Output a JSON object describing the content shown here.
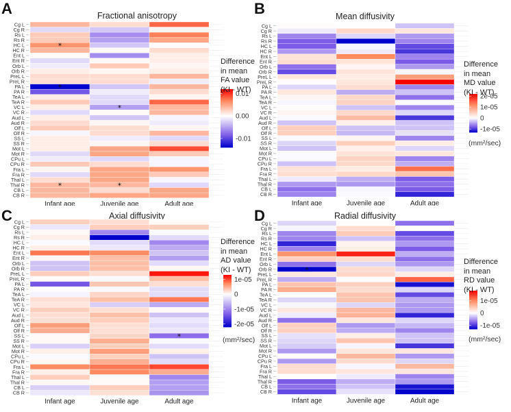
{
  "chart_data": [
    {
      "type": "heatmap",
      "panel": "A",
      "title": "Fractional anisotropy",
      "xlabel": "",
      "ylabel": "",
      "columns": [
        "Infant age",
        "Juvenile age",
        "Adult age"
      ],
      "rows": [
        "Cg L",
        "Cg R",
        "Rs L",
        "Rs R",
        "HC L",
        "HC R",
        "Ent L",
        "Ent R",
        "Orb L",
        "Orb R",
        "PreL L",
        "PreL R",
        "PA L",
        "PA R",
        "TeA L",
        "TeA R",
        "VC L",
        "VC R",
        "Aud L",
        "Aud R",
        "Olf L",
        "Olf R",
        "SS L",
        "SS R",
        "Mot L",
        "Mot R",
        "CPu L",
        "CPu R",
        "Fra L",
        "Fra R",
        "Thal L",
        "Thal R",
        "CB L",
        "CB R"
      ],
      "values": [
        [
          0.004,
          0.002,
          0.008
        ],
        [
          -0.002,
          -0.003,
          0.0005
        ],
        [
          0.003,
          -0.006,
          0.007
        ],
        [
          0.003,
          -0.005,
          0.005
        ],
        [
          0.006,
          -0.003,
          0.0002
        ],
        [
          0.004,
          0.0003,
          0.002
        ],
        [
          0.0003,
          -0.006,
          0.001
        ],
        [
          -0.002,
          0.0003,
          0.001
        ],
        [
          -0.001,
          0.003,
          0.0005
        ],
        [
          0.001,
          0.0005,
          0.001
        ],
        [
          0.002,
          0.002,
          0.004
        ],
        [
          0.002,
          0.002,
          -0.001
        ],
        [
          -0.014,
          -0.003,
          0.004
        ],
        [
          -0.009,
          -0.001,
          0.002
        ],
        [
          0.001,
          -0.002,
          0.0005
        ],
        [
          0.003,
          -0.002,
          0.008
        ],
        [
          0.001,
          -0.005,
          0.004
        ],
        [
          -0.002,
          0.0003,
          0.004
        ],
        [
          0.001,
          -0.003,
          -0.0005
        ],
        [
          0.002,
          0.0005,
          -0.001
        ],
        [
          0.003,
          0.002,
          0.0005
        ],
        [
          -0.0005,
          0.002,
          0.004
        ],
        [
          0.001,
          -0.001,
          -0.002
        ],
        [
          0.001,
          0.0005,
          0.002
        ],
        [
          0.001,
          0.005,
          0.009
        ],
        [
          -0.002,
          0.005,
          0.003
        ],
        [
          -0.001,
          -0.002,
          -0.0005
        ],
        [
          0.003,
          0.002,
          -0.0005
        ],
        [
          0.0005,
          0.005,
          0.006
        ],
        [
          -0.002,
          0.005,
          0.003
        ],
        [
          0.002,
          0.005,
          -0.0005
        ],
        [
          0.004,
          0.004,
          -0.002
        ],
        [
          0.004,
          0.002,
          0.005
        ],
        [
          0.004,
          0.005,
          0.005
        ]
      ],
      "significant": [
        [
          4,
          0
        ],
        [
          12,
          0
        ],
        [
          16,
          1
        ],
        [
          31,
          0
        ],
        [
          31,
          1
        ]
      ],
      "legend": {
        "title_lines": [
          "Difference",
          "in mean",
          "FA value",
          "(KI - WT)"
        ],
        "ticks": [
          0.01,
          0.0,
          -0.01
        ],
        "tick_labels": [
          "0.01",
          "0.00",
          "-0.01"
        ],
        "range": [
          -0.014,
          0.012
        ],
        "unit": ""
      }
    },
    {
      "type": "heatmap",
      "panel": "B",
      "title": "Mean diffusivity",
      "xlabel": "",
      "ylabel": "",
      "columns": [
        "Infant age",
        "Juvenile age",
        "Adult age"
      ],
      "rows": [
        "Cg L",
        "Cg R",
        "Rs L",
        "Rs R",
        "HC L",
        "HC R",
        "Ent L",
        "Ent R",
        "Orb L",
        "Orb R",
        "PreL L",
        "PreL R",
        "PA L",
        "PA R",
        "TeA L",
        "TeA R",
        "VC L",
        "VC R",
        "Aud L",
        "Aud R",
        "Olf L",
        "Olf R",
        "SS L",
        "SS R",
        "Mot L",
        "Mot R",
        "CPu L",
        "CPu R",
        "Fra L",
        "Fra R",
        "Thal L",
        "Thal R",
        "CB L",
        "CB R"
      ],
      "values": [
        [
          3e-07,
          1e-07,
          -3e-06
        ],
        [
          -1e-06,
          4e-06,
          2.5e-06
        ],
        [
          -6e-06,
          -2e-06,
          -5e-06
        ],
        [
          -8e-06,
          -1.3e-05,
          -6e-06
        ],
        [
          -8e-06,
          -5e-07,
          -9e-06
        ],
        [
          -5e-06,
          -1e-06,
          -1e-05
        ],
        [
          3e-06,
          1.2e-05,
          -6e-06
        ],
        [
          3.5e-06,
          3e-06,
          -8e-06
        ],
        [
          -7e-06,
          1e-06,
          -5e-06
        ],
        [
          -9e-06,
          3e-06,
          -5e-07
        ],
        [
          2.5e-06,
          2e-06,
          1e-05
        ],
        [
          3e-07,
          2.5e-06,
          2.2e-05
        ],
        [
          -2e-06,
          3.5e-06,
          -6e-06
        ],
        [
          2.5e-06,
          -4e-06,
          -3e-06
        ],
        [
          1e-06,
          4e-06,
          -7e-06
        ],
        [
          -5e-07,
          4.5e-06,
          -3e-07
        ],
        [
          3e-07,
          -3e-06,
          -6e-06
        ],
        [
          1e-06,
          4e-06,
          -2e-06
        ],
        [
          -3e-07,
          7e-06,
          -1e-05
        ],
        [
          -3e-06,
          1.5e-06,
          -3e-06
        ],
        [
          5e-06,
          -3e-06,
          -3e-06
        ],
        [
          5e-06,
          -3.5e-06,
          -1.5e-06
        ],
        [
          -3e-07,
          1e-06,
          -6e-06
        ],
        [
          -2e-06,
          5e-06,
          2e-06
        ],
        [
          -3e-06,
          1.5e-06,
          -2e-06
        ],
        [
          -3e-07,
          3e-06,
          2.5e-06
        ],
        [
          -3e-07,
          4.5e-06,
          -6e-06
        ],
        [
          -3e-06,
          4e-06,
          -4e-06
        ],
        [
          3e-06,
          2e-06,
          1.4e-05
        ],
        [
          3.5e-06,
          4e-06,
          6e-06
        ],
        [
          -1e-06,
          -4e-06,
          -8e-06
        ],
        [
          -5e-06,
          -5e-06,
          -7e-06
        ],
        [
          -7e-06,
          -5e-07,
          -8e-06
        ],
        [
          -6e-06,
          -3e-07,
          -1.1e-05
        ]
      ],
      "significant": [],
      "legend": {
        "title_lines": [
          "Difference",
          "in mean",
          "MD value",
          "(KI - WT)"
        ],
        "ticks": [
          2e-05,
          1e-05,
          0,
          -1e-05
        ],
        "tick_labels": [
          "2e-05",
          "1e-05",
          "0",
          "-1e-05"
        ],
        "range": [
          -1.3e-05,
          2.2e-05
        ],
        "unit": "(mm²/sec)"
      }
    },
    {
      "type": "heatmap",
      "panel": "C",
      "title": "Axial diffusivity",
      "xlabel": "",
      "ylabel": "",
      "columns": [
        "Infant age",
        "Juvenile age",
        "Adult age"
      ],
      "rows": [
        "Cg L",
        "Cg R",
        "Rs L",
        "Rs R",
        "HC L",
        "HC R",
        "Ent L",
        "Ent R",
        "Orb L",
        "Orb R",
        "PreL L",
        "PreL R",
        "PA L",
        "PA R",
        "TeA L",
        "TeA R",
        "VC L",
        "VC R",
        "Aud L",
        "Aud R",
        "Olf L",
        "Olf R",
        "SS L",
        "SS R",
        "Mot L",
        "Mot R",
        "CPu L",
        "CPu R",
        "Fra L",
        "Fra R",
        "Thal L",
        "Thal R",
        "CB L",
        "CB R"
      ],
      "values": [
        [
          3e-06,
          2e-06,
          3e-07
        ],
        [
          -2e-06,
          3e-06,
          3e-06
        ],
        [
          3e-07,
          -1e-05,
          -5e-07
        ],
        [
          1e-06,
          -2.2e-05,
          -3e-06
        ],
        [
          -5e-07,
          -3e-06,
          -1e-05
        ],
        [
          1e-06,
          -2e-06,
          -7e-06
        ],
        [
          8e-06,
          7e-06,
          -5e-06
        ],
        [
          5e-07,
          4e-06,
          -8e-06
        ],
        [
          -5e-06,
          4e-06,
          -3e-06
        ],
        [
          -5e-06,
          4e-06,
          5e-07
        ],
        [
          3e-06,
          2e-06,
          1.2e-05
        ],
        [
          3e-07,
          -5e-07,
          4e-06
        ],
        [
          -1.4e-05,
          3.5e-06,
          2e-06
        ],
        [
          -3e-07,
          -5e-07,
          -3e-06
        ],
        [
          -1e-06,
          2.5e-06,
          -3e-06
        ],
        [
          2e-06,
          4e-06,
          8e-06
        ],
        [
          1.5e-06,
          -4e-06,
          -7e-06
        ],
        [
          3e-06,
          2e-06,
          3e-07
        ],
        [
          2e-06,
          4e-06,
          -5e-06
        ],
        [
          2e-06,
          3e-06,
          -2e-06
        ],
        [
          6e-06,
          2e-06,
          -3e-06
        ],
        [
          5e-06,
          2e-06,
          -2e-06
        ],
        [
          3e-07,
          2.5e-06,
          -1.2e-05
        ],
        [
          3e-07,
          5e-06,
          -5e-07
        ],
        [
          -4e-06,
          3e-06,
          -3e-06
        ],
        [
          1e-06,
          6e-06,
          1e-06
        ],
        [
          -5e-07,
          3e-06,
          -5e-06
        ],
        [
          5e-07,
          5e-06,
          -3e-06
        ],
        [
          7e-06,
          8e-06,
          1e-05
        ],
        [
          1e-06,
          7e-06,
          5e-06
        ],
        [
          3e-06,
          3e-07,
          -1e-05
        ],
        [
          5e-07,
          3e-07,
          -8e-06
        ],
        [
          -4e-06,
          3e-06,
          -8e-06
        ],
        [
          -2e-06,
          2e-06,
          -9e-06
        ]
      ],
      "significant": [
        [
          22,
          2
        ]
      ],
      "legend": {
        "title_lines": [
          "Difference",
          "in mean",
          "AD value",
          "(KI - WT)"
        ],
        "ticks": [
          1e-05,
          0,
          -1e-05,
          -2e-05
        ],
        "tick_labels": [
          "1e-05",
          "0",
          "-1e-05",
          "-2e-05"
        ],
        "range": [
          -2.2e-05,
          1.3e-05
        ],
        "unit": "(mm²/sec)"
      }
    },
    {
      "type": "heatmap",
      "panel": "D",
      "title": "Radial diffusivity",
      "xlabel": "",
      "ylabel": "",
      "columns": [
        "Infant age",
        "Juvenile age",
        "Adult age"
      ],
      "rows": [
        "Cg L",
        "Cg R",
        "Rs L",
        "Rs R",
        "HC L",
        "HC R",
        "Ent L",
        "Ent R",
        "Orb L",
        "Orb R",
        "PreL L",
        "PreL R",
        "PA L",
        "PA R",
        "TeA L",
        "TeA R",
        "VC L",
        "VC R",
        "Aud L",
        "Aud R",
        "Olf L",
        "Olf R",
        "SS L",
        "SS R",
        "Mot L",
        "Mot R",
        "CPu L",
        "CPu R",
        "Fra L",
        "Fra R",
        "Thal L",
        "Thal R",
        "CB L",
        "CB R"
      ],
      "values": [
        [
          -2e-06,
          2e-07,
          -7e-06
        ],
        [
          -5e-07,
          3e-06,
          3e-07
        ],
        [
          -6e-06,
          4.5e-06,
          -9e-06
        ],
        [
          -6e-06,
          -3e-06,
          -7e-06
        ],
        [
          -1.1e-05,
          1e-06,
          -5e-06
        ],
        [
          -6e-06,
          1.5e-06,
          -8e-06
        ],
        [
          9e-06,
          1.6e-05,
          -4e-06
        ],
        [
          4e-06,
          3e-06,
          -7e-06
        ],
        [
          -7e-06,
          -2e-06,
          -5e-06
        ],
        [
          -1.3e-05,
          3e-06,
          -2e-06
        ],
        [
          2e-06,
          3.5e-06,
          1.5e-06
        ],
        [
          -4e-06,
          -2e-07,
          1.2e-05
        ],
        [
          5e-06,
          4e-06,
          -1.2e-05
        ],
        [
          7e-06,
          3e-06,
          -2e-06
        ],
        [
          3e-07,
          5e-06,
          -9e-06
        ],
        [
          -2e-06,
          5e-06,
          -4e-06
        ],
        [
          -5e-07,
          -2e-06,
          -5e-06
        ],
        [
          2e-06,
          6e-06,
          -5e-06
        ],
        [
          -1e-06,
          6.5e-06,
          -1.1e-05
        ],
        [
          -7e-06,
          2e-06,
          -2e-06
        ],
        [
          4e-06,
          -5e-06,
          -3.5e-06
        ],
        [
          4e-06,
          -4e-06,
          -6e-06
        ],
        [
          -1.5e-06,
          1.5e-06,
          -3e-06
        ],
        [
          -2e-06,
          5e-06,
          -3e-06
        ],
        [
          -2.5e-06,
          -5e-07,
          -1e-05
        ],
        [
          -5e-06,
          2e-06,
          2e-06
        ],
        [
          5e-07,
          6e-06,
          -5e-06
        ],
        [
          -5e-06,
          3e-06,
          -2e-06
        ],
        [
          3e-06,
          -5e-07,
          6e-06
        ],
        [
          3e-06,
          2e-06,
          2e-06
        ],
        [
          2e-07,
          -1e-06,
          -6e-06
        ],
        [
          -8e-06,
          -4e-06,
          -5e-06
        ],
        [
          -7e-06,
          -3e-06,
          -1.2e-05
        ],
        [
          -9e-06,
          -1.5e-06,
          -1.3e-05
        ]
      ],
      "significant": [
        [
          9,
          0
        ]
      ],
      "legend": {
        "title_lines": [
          "Difference",
          "in mean",
          "RD value",
          "(KI - WT)"
        ],
        "ticks": [
          1e-05,
          0,
          -1e-05
        ],
        "tick_labels": [
          "1e-05",
          "0",
          "-1e-05"
        ],
        "range": [
          -1.3e-05,
          1.8e-05
        ],
        "unit": "(mm²/sec)"
      }
    }
  ],
  "colors": {
    "high": "#ff0000",
    "mid": "#ffffff",
    "low": "#0000cc",
    "low_mid": "#8060e8",
    "high_mid": "#ff8a60"
  },
  "star_glyph": "*"
}
